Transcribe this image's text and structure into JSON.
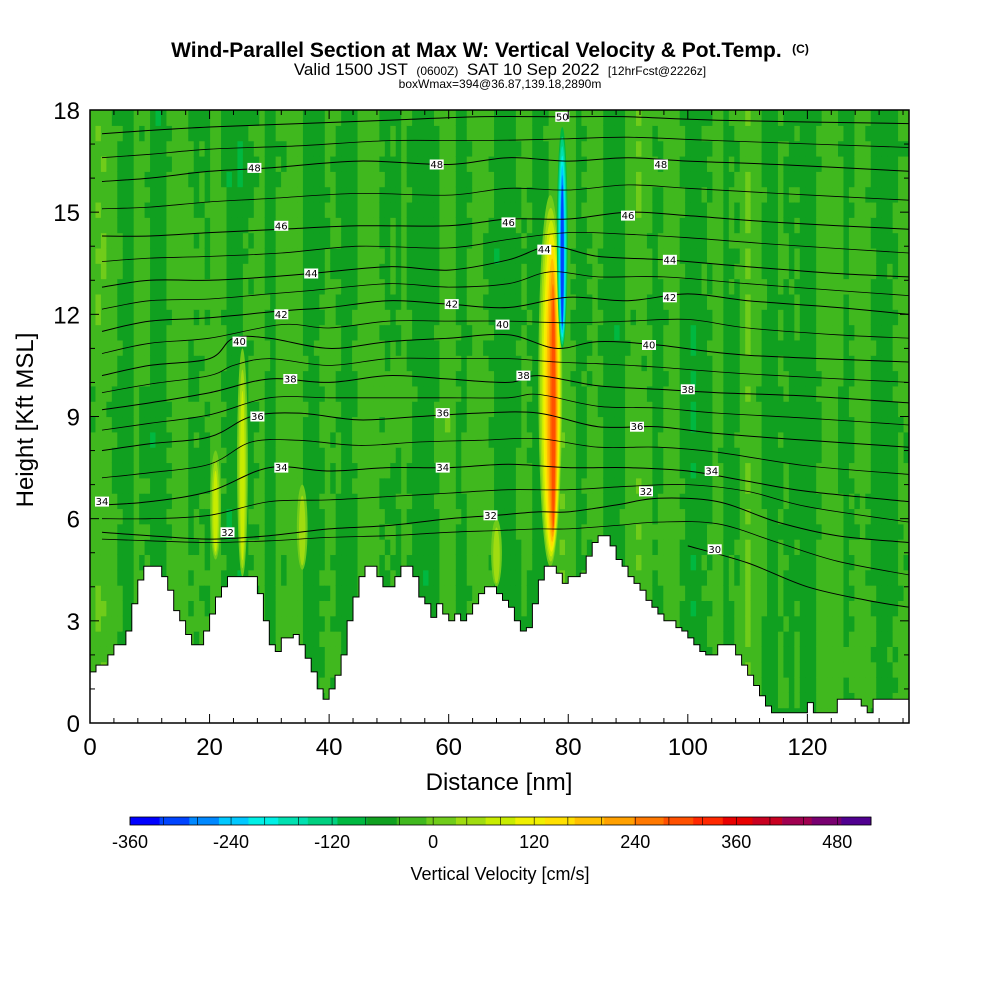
{
  "chart_data": {
    "type": "heatmap",
    "title": {
      "main": "Wind-Parallel Section at Max W: Vertical Velocity & Pot.Temp.",
      "copyright": "(C)",
      "valid_prefix": "Valid 1500 JST",
      "valid_utc": "(0600Z)",
      "valid_date": "SAT 10 Sep 2022",
      "forecast": "[12hrFcst@2226z]",
      "box": "boxWmax=394@36.87,139.18,2890m"
    },
    "xlabel": "Distance [nm]",
    "ylabel": "Height [Kft MSL]",
    "xlim": [
      0,
      137
    ],
    "ylim": [
      0,
      18
    ],
    "x_ticks": [
      0,
      20,
      40,
      60,
      80,
      100,
      120
    ],
    "y_ticks": [
      0,
      3,
      6,
      9,
      12,
      15,
      18
    ],
    "colorbar": {
      "title": "Vertical Velocity [cm/s]",
      "labels": [
        -360,
        -240,
        -120,
        0,
        120,
        240,
        360,
        480
      ],
      "min": -360,
      "max": 520,
      "step": 40,
      "colors": [
        "#0000ff",
        "#0044ff",
        "#0088ff",
        "#00c8ff",
        "#00f0e6",
        "#00e0b0",
        "#00d080",
        "#00b840",
        "#10a020",
        "#40b81e",
        "#70cc1a",
        "#a0dc10",
        "#c8ec00",
        "#f0f000",
        "#ffe000",
        "#ffc000",
        "#ffa000",
        "#ff7800",
        "#ff5000",
        "#ff2800",
        "#e80000",
        "#c80020",
        "#a00050",
        "#780070",
        "#500090"
      ]
    },
    "terrain": [
      [
        0,
        1.5
      ],
      [
        1,
        1.7
      ],
      [
        3,
        2.0
      ],
      [
        4,
        2.3
      ],
      [
        6,
        2.7
      ],
      [
        7,
        3.5
      ],
      [
        8,
        4.2
      ],
      [
        9,
        4.6
      ],
      [
        11,
        4.6
      ],
      [
        12,
        4.3
      ],
      [
        13,
        3.9
      ],
      [
        14,
        3.3
      ],
      [
        15,
        3.0
      ],
      [
        16,
        2.6
      ],
      [
        17,
        2.3
      ],
      [
        18,
        2.3
      ],
      [
        19,
        2.7
      ],
      [
        20,
        3.2
      ],
      [
        21,
        3.7
      ],
      [
        22,
        4.0
      ],
      [
        23,
        4.3
      ],
      [
        27,
        4.3
      ],
      [
        28,
        3.8
      ],
      [
        29,
        3.0
      ],
      [
        30,
        2.3
      ],
      [
        31,
        2.1
      ],
      [
        32,
        2.5
      ],
      [
        34,
        2.6
      ],
      [
        35,
        2.3
      ],
      [
        36,
        1.9
      ],
      [
        37,
        1.5
      ],
      [
        38,
        1.0
      ],
      [
        39,
        0.7
      ],
      [
        40,
        1.0
      ],
      [
        41,
        1.4
      ],
      [
        42,
        2.0
      ],
      [
        43,
        3.0
      ],
      [
        44,
        3.7
      ],
      [
        45,
        4.3
      ],
      [
        46,
        4.6
      ],
      [
        47,
        4.6
      ],
      [
        48,
        4.3
      ],
      [
        49,
        4.0
      ],
      [
        50,
        4.0
      ],
      [
        51,
        4.3
      ],
      [
        52,
        4.6
      ],
      [
        53,
        4.6
      ],
      [
        54,
        4.3
      ],
      [
        55,
        3.7
      ],
      [
        56,
        3.5
      ],
      [
        57,
        3.1
      ],
      [
        58,
        3.5
      ],
      [
        59,
        3.2
      ],
      [
        60,
        3.0
      ],
      [
        61,
        3.2
      ],
      [
        62,
        3.0
      ],
      [
        63,
        3.2
      ],
      [
        64,
        3.5
      ],
      [
        65,
        3.8
      ],
      [
        66,
        4.0
      ],
      [
        67,
        4.0
      ],
      [
        68,
        3.8
      ],
      [
        69,
        3.6
      ],
      [
        70,
        3.4
      ],
      [
        71,
        3.0
      ],
      [
        72,
        2.7
      ],
      [
        73,
        2.8
      ],
      [
        74,
        3.5
      ],
      [
        75,
        4.2
      ],
      [
        76,
        4.6
      ],
      [
        77,
        4.6
      ],
      [
        78,
        4.4
      ],
      [
        79,
        4.1
      ],
      [
        80,
        4.3
      ],
      [
        82,
        4.4
      ],
      [
        83,
        4.9
      ],
      [
        84,
        5.3
      ],
      [
        85,
        5.5
      ],
      [
        86,
        5.5
      ],
      [
        87,
        5.2
      ],
      [
        88,
        4.8
      ],
      [
        89,
        4.6
      ],
      [
        90,
        4.3
      ],
      [
        91,
        4.1
      ],
      [
        92,
        3.9
      ],
      [
        93,
        3.6
      ],
      [
        94,
        3.4
      ],
      [
        95,
        3.2
      ],
      [
        96,
        3.0
      ],
      [
        98,
        2.8
      ],
      [
        99,
        2.7
      ],
      [
        100,
        2.5
      ],
      [
        101,
        2.3
      ],
      [
        102,
        2.1
      ],
      [
        103,
        2.0
      ],
      [
        104,
        2.0
      ],
      [
        105,
        2.3
      ],
      [
        107,
        2.3
      ],
      [
        108,
        2.0
      ],
      [
        109,
        1.7
      ],
      [
        110,
        1.4
      ],
      [
        111,
        1.1
      ],
      [
        112,
        0.8
      ],
      [
        113,
        0.5
      ],
      [
        114,
        0.3
      ],
      [
        119,
        0.3
      ],
      [
        120,
        0.6
      ],
      [
        121,
        0.3
      ],
      [
        124,
        0.3
      ],
      [
        125,
        0.7
      ],
      [
        128,
        0.7
      ],
      [
        129,
        0.5
      ],
      [
        130,
        0.3
      ],
      [
        131,
        0.7
      ],
      [
        137,
        0.7
      ]
    ],
    "updrafts": [
      {
        "x": 25.5,
        "y0": 4.3,
        "y1": 11.0,
        "peak": 140
      },
      {
        "x": 21.0,
        "y0": 4.8,
        "y1": 8.0,
        "peak": 120
      },
      {
        "x": 35.5,
        "y0": 4.5,
        "y1": 7.0,
        "peak": 90
      },
      {
        "x": 68.0,
        "y0": 4.0,
        "y1": 6.0,
        "peak": 110
      },
      {
        "x": 77.0,
        "y0": 4.6,
        "y1": 15.5,
        "peak": 394
      }
    ],
    "downdrafts": [
      {
        "x": 79.0,
        "y0": 11.0,
        "y1": 17.5,
        "peak": -300
      }
    ],
    "isentropes": [
      {
        "theta": 30,
        "points": [
          [
            100,
            5.2
          ],
          [
            110,
            4.7
          ],
          [
            120,
            4.0
          ],
          [
            130,
            3.6
          ],
          [
            137,
            3.4
          ]
        ]
      },
      {
        "theta": 32,
        "points": [
          [
            2,
            5.6
          ],
          [
            10,
            5.5
          ],
          [
            20,
            5.4
          ],
          [
            30,
            5.5
          ],
          [
            40,
            5.7
          ],
          [
            50,
            5.8
          ],
          [
            60,
            6.0
          ],
          [
            68,
            6.1
          ],
          [
            75,
            6.2
          ],
          [
            80,
            6.2
          ],
          [
            88,
            6.4
          ],
          [
            95,
            6.6
          ],
          [
            105,
            6.5
          ],
          [
            115,
            5.9
          ],
          [
            125,
            5.5
          ],
          [
            137,
            5.3
          ]
        ]
      },
      {
        "theta": 34,
        "points": [
          [
            2,
            6.4
          ],
          [
            10,
            6.5
          ],
          [
            20,
            6.8
          ],
          [
            30,
            7.5
          ],
          [
            40,
            7.4
          ],
          [
            50,
            7.5
          ],
          [
            60,
            7.5
          ],
          [
            70,
            7.6
          ],
          [
            80,
            7.5
          ],
          [
            90,
            7.5
          ],
          [
            100,
            7.4
          ],
          [
            110,
            7.1
          ],
          [
            120,
            6.8
          ],
          [
            137,
            6.5
          ]
        ]
      },
      {
        "theta": 36,
        "points": [
          [
            2,
            8.0
          ],
          [
            10,
            8.2
          ],
          [
            20,
            8.4
          ],
          [
            27,
            9.0
          ],
          [
            35,
            9.1
          ],
          [
            45,
            8.9
          ],
          [
            55,
            9.0
          ],
          [
            65,
            9.1
          ],
          [
            75,
            9.1
          ],
          [
            85,
            8.7
          ],
          [
            95,
            8.7
          ],
          [
            105,
            8.5
          ],
          [
            120,
            8.3
          ],
          [
            137,
            8.1
          ]
        ]
      },
      {
        "theta": 38,
        "points": [
          [
            2,
            9.2
          ],
          [
            10,
            9.4
          ],
          [
            20,
            9.7
          ],
          [
            30,
            10.1
          ],
          [
            40,
            10.0
          ],
          [
            50,
            10.2
          ],
          [
            60,
            10.1
          ],
          [
            70,
            10.0
          ],
          [
            75,
            10.2
          ],
          [
            85,
            9.9
          ],
          [
            95,
            9.8
          ],
          [
            105,
            9.7
          ],
          [
            120,
            9.6
          ],
          [
            137,
            9.4
          ]
        ]
      },
      {
        "theta": 40,
        "points": [
          [
            2,
            10.2
          ],
          [
            10,
            10.5
          ],
          [
            20,
            10.7
          ],
          [
            24,
            11.3
          ],
          [
            30,
            11.3
          ],
          [
            40,
            11.0
          ],
          [
            50,
            11.2
          ],
          [
            60,
            11.3
          ],
          [
            70,
            11.4
          ],
          [
            78,
            11.0
          ],
          [
            85,
            11.2
          ],
          [
            95,
            11.1
          ],
          [
            110,
            10.8
          ],
          [
            137,
            10.6
          ]
        ]
      },
      {
        "theta": 42,
        "points": [
          [
            2,
            11.5
          ],
          [
            10,
            11.8
          ],
          [
            20,
            11.9
          ],
          [
            32,
            12.1
          ],
          [
            40,
            12.2
          ],
          [
            50,
            12.4
          ],
          [
            60,
            12.3
          ],
          [
            70,
            12.2
          ],
          [
            80,
            12.5
          ],
          [
            90,
            12.4
          ],
          [
            100,
            12.6
          ],
          [
            110,
            12.4
          ],
          [
            125,
            12.2
          ],
          [
            137,
            12.0
          ]
        ]
      },
      {
        "theta": 44,
        "points": [
          [
            2,
            12.8
          ],
          [
            10,
            13.0
          ],
          [
            20,
            13.0
          ],
          [
            30,
            13.1
          ],
          [
            37,
            13.2
          ],
          [
            50,
            13.4
          ],
          [
            60,
            13.3
          ],
          [
            70,
            13.6
          ],
          [
            77,
            14.0
          ],
          [
            85,
            13.7
          ],
          [
            96,
            13.6
          ],
          [
            110,
            13.4
          ],
          [
            125,
            13.2
          ],
          [
            137,
            13.1
          ]
        ]
      },
      {
        "theta": 46,
        "points": [
          [
            2,
            14.3
          ],
          [
            10,
            14.3
          ],
          [
            20,
            14.4
          ],
          [
            32,
            14.5
          ],
          [
            45,
            14.6
          ],
          [
            60,
            14.6
          ],
          [
            70,
            14.8
          ],
          [
            80,
            14.8
          ],
          [
            90,
            15.0
          ],
          [
            100,
            14.9
          ],
          [
            115,
            14.7
          ],
          [
            137,
            14.5
          ]
        ]
      },
      {
        "theta": 48,
        "points": [
          [
            2,
            15.9
          ],
          [
            10,
            16.0
          ],
          [
            20,
            16.2
          ],
          [
            30,
            16.3
          ],
          [
            45,
            16.5
          ],
          [
            60,
            16.4
          ],
          [
            70,
            16.6
          ],
          [
            80,
            16.5
          ],
          [
            90,
            16.6
          ],
          [
            100,
            16.5
          ],
          [
            115,
            16.4
          ],
          [
            137,
            16.2
          ]
        ]
      },
      {
        "theta": 50,
        "points": [
          [
            2,
            17.3
          ],
          [
            10,
            17.4
          ],
          [
            20,
            17.5
          ],
          [
            35,
            17.6
          ],
          [
            50,
            17.7
          ],
          [
            65,
            17.8
          ],
          [
            79,
            17.8
          ],
          [
            90,
            17.8
          ],
          [
            105,
            17.7
          ],
          [
            137,
            17.6
          ]
        ]
      }
    ],
    "contour_labels": [
      {
        "text": "48",
        "x": 27.5,
        "y": 16.3
      },
      {
        "text": "48",
        "x": 58.0,
        "y": 16.4
      },
      {
        "text": "48",
        "x": 95.5,
        "y": 16.4
      },
      {
        "text": "46",
        "x": 32.0,
        "y": 14.6
      },
      {
        "text": "46",
        "x": 70.0,
        "y": 14.7
      },
      {
        "text": "46",
        "x": 90.0,
        "y": 14.9
      },
      {
        "text": "44",
        "x": 76.0,
        "y": 13.9
      },
      {
        "text": "44",
        "x": 37.0,
        "y": 13.2
      },
      {
        "text": "44",
        "x": 97.0,
        "y": 13.6
      },
      {
        "text": "42",
        "x": 32.0,
        "y": 12.0
      },
      {
        "text": "42",
        "x": 60.5,
        "y": 12.3
      },
      {
        "text": "42",
        "x": 97.0,
        "y": 12.5
      },
      {
        "text": "40",
        "x": 25.0,
        "y": 11.2
      },
      {
        "text": "40",
        "x": 69.0,
        "y": 11.7
      },
      {
        "text": "40",
        "x": 93.5,
        "y": 11.1
      },
      {
        "text": "38",
        "x": 33.5,
        "y": 10.1
      },
      {
        "text": "38",
        "x": 72.5,
        "y": 10.2
      },
      {
        "text": "38",
        "x": 100.0,
        "y": 9.8
      },
      {
        "text": "36",
        "x": 28.0,
        "y": 9.0
      },
      {
        "text": "36",
        "x": 59.0,
        "y": 9.1
      },
      {
        "text": "36",
        "x": 91.5,
        "y": 8.7
      },
      {
        "text": "34",
        "x": 32.0,
        "y": 7.5
      },
      {
        "text": "34",
        "x": 59.0,
        "y": 7.5
      },
      {
        "text": "34",
        "x": 104.0,
        "y": 7.4
      },
      {
        "text": "34",
        "x": 2.0,
        "y": 6.5
      },
      {
        "text": "32",
        "x": 93.0,
        "y": 6.8
      },
      {
        "text": "32",
        "x": 67.0,
        "y": 6.1
      },
      {
        "text": "32",
        "x": 23.0,
        "y": 5.6
      },
      {
        "text": "30",
        "x": 104.5,
        "y": 5.1
      },
      {
        "text": "50",
        "x": 79.0,
        "y": 17.8
      }
    ]
  }
}
